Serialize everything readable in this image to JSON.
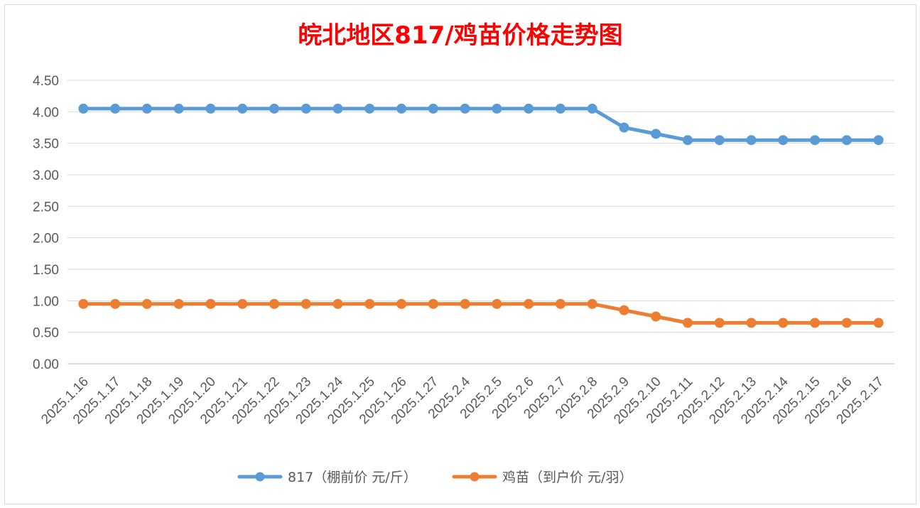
{
  "chart_data": {
    "type": "line",
    "title": "皖北地区817/鸡苗价格走势图",
    "xlabel": "",
    "ylabel": "",
    "ylim": [
      0,
      4.5
    ],
    "y_ticks": [
      "0.00",
      "0.50",
      "1.00",
      "1.50",
      "2.00",
      "2.50",
      "3.00",
      "3.50",
      "4.00",
      "4.50"
    ],
    "grid": true,
    "legend_position": "bottom",
    "categories": [
      "2025.1.16",
      "2025.1.17",
      "2025.1.18",
      "2025.1.19",
      "2025.1.20",
      "2025.1.21",
      "2025.1.22",
      "2025.1.23",
      "2025.1.24",
      "2025.1.25",
      "2025.1.26",
      "2025.1.27",
      "2025.2.4",
      "2025.2.5",
      "2025.2.6",
      "2025.2.7",
      "2025.2.8",
      "2025.2.9",
      "2025.2.10",
      "2025.2.11",
      "2025.2.12",
      "2025.2.13",
      "2025.2.14",
      "2025.2.15",
      "2025.2.16",
      "2025.2.17"
    ],
    "series": [
      {
        "name": "817（棚前价 元/斤）",
        "color": "#5b9bd5",
        "values": [
          4.05,
          4.05,
          4.05,
          4.05,
          4.05,
          4.05,
          4.05,
          4.05,
          4.05,
          4.05,
          4.05,
          4.05,
          4.05,
          4.05,
          4.05,
          4.05,
          4.05,
          3.75,
          3.65,
          3.55,
          3.55,
          3.55,
          3.55,
          3.55,
          3.55,
          3.55
        ]
      },
      {
        "name": "鸡苗（到户价 元/羽）",
        "color": "#ed7d31",
        "values": [
          0.95,
          0.95,
          0.95,
          0.95,
          0.95,
          0.95,
          0.95,
          0.95,
          0.95,
          0.95,
          0.95,
          0.95,
          0.95,
          0.95,
          0.95,
          0.95,
          0.95,
          0.85,
          0.75,
          0.65,
          0.65,
          0.65,
          0.65,
          0.65,
          0.65,
          0.65
        ]
      }
    ]
  }
}
